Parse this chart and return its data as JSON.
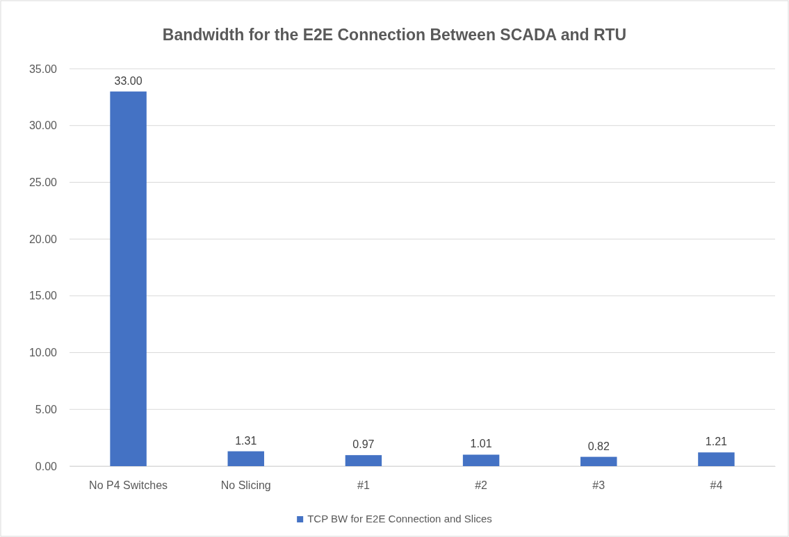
{
  "chart_data": {
    "type": "bar",
    "title": "Bandwidth for the E2E Connection Between SCADA and RTU",
    "categories": [
      "No P4 Switches",
      "No Slicing",
      "#1",
      "#2",
      "#3",
      "#4"
    ],
    "series": [
      {
        "name": "TCP BW for E2E Connection and Slices",
        "color": "#4472c4",
        "values": [
          33,
          1.31,
          0.97,
          1.01,
          0.82,
          1.21
        ],
        "value_labels": [
          "33.00",
          "1.31",
          "0.97",
          "1.01",
          "0.82",
          "1.21"
        ]
      }
    ],
    "ylim": [
      0,
      35
    ],
    "yticks": [
      {
        "value": 0,
        "label": "0.00"
      },
      {
        "value": 5,
        "label": "5.00"
      },
      {
        "value": 10,
        "label": "10.00"
      },
      {
        "value": 15,
        "label": "15.00"
      },
      {
        "value": 20,
        "label": "20.00"
      },
      {
        "value": 25,
        "label": "25.00"
      },
      {
        "value": 30,
        "label": "30.00"
      },
      {
        "value": 35,
        "label": "35.00"
      }
    ],
    "grid": "y",
    "legend": "bottom"
  }
}
